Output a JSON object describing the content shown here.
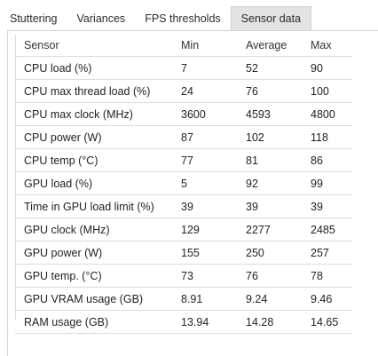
{
  "tabs": [
    {
      "label": "Stuttering",
      "active": false
    },
    {
      "label": "Variances",
      "active": false
    },
    {
      "label": "FPS thresholds",
      "active": false
    },
    {
      "label": "Sensor data",
      "active": true
    }
  ],
  "table": {
    "headers": [
      "Sensor",
      "Min",
      "Average",
      "Max"
    ],
    "rows": [
      [
        "CPU load (%)",
        "7",
        "52",
        "90"
      ],
      [
        "CPU max thread load (%)",
        "24",
        "76",
        "100"
      ],
      [
        "CPU max clock (MHz)",
        "3600",
        "4593",
        "4800"
      ],
      [
        "CPU power (W)",
        "87",
        "102",
        "118"
      ],
      [
        "CPU temp (°C)",
        "77",
        "81",
        "86"
      ],
      [
        "GPU load (%)",
        "5",
        "92",
        "99"
      ],
      [
        "Time in GPU load limit (%)",
        "39",
        "39",
        "39"
      ],
      [
        "GPU clock (MHz)",
        "129",
        "2277",
        "2485"
      ],
      [
        "GPU power (W)",
        "155",
        "250",
        "257"
      ],
      [
        "GPU temp. (°C)",
        "73",
        "76",
        "78"
      ],
      [
        "GPU VRAM usage (GB)",
        "8.91",
        "9.24",
        "9.46"
      ],
      [
        "RAM usage (GB)",
        "13.94",
        "14.28",
        "14.65"
      ]
    ]
  }
}
